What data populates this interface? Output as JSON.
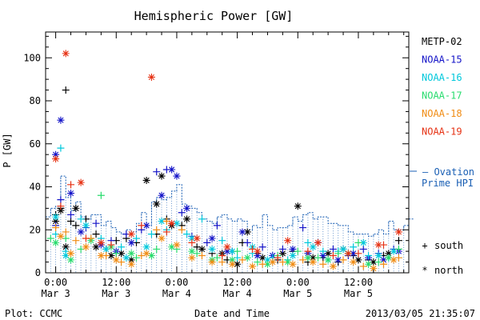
{
  "chart_data": {
    "type": "scatter",
    "title": "Hemispheric Power [GW]",
    "xlabel": "Date and Time",
    "ylabel": "P [GW]",
    "ylim": [
      0,
      112
    ],
    "xlim_hours": [
      -2,
      70
    ],
    "yticks": [
      0,
      20,
      40,
      60,
      80,
      100
    ],
    "xticks": [
      {
        "hour": 0,
        "time": "0:00",
        "date": "Mar 3"
      },
      {
        "hour": 12,
        "time": "12:00",
        "date": "Mar 3"
      },
      {
        "hour": 24,
        "time": "0:00",
        "date": "Mar 4"
      },
      {
        "hour": 36,
        "time": "12:00",
        "date": "Mar 4"
      },
      {
        "hour": 48,
        "time": "0:00",
        "date": "Mar 5"
      },
      {
        "hour": 60,
        "time": "12:00",
        "date": "Mar 5"
      }
    ],
    "footer_left": "Plot: CCMC",
    "footer_right": "2013/03/05 21:35:07",
    "marker_key": {
      "south_symbol": "+",
      "south": "south",
      "north_symbol": "*",
      "north": "north"
    },
    "ovation_legend": {
      "line1": "— Ovation",
      "line2": "Prime HPI",
      "color": "#1a5fb4"
    },
    "series": [
      {
        "name": "METP-02",
        "color": "#000000",
        "south": [
          [
            0,
            27
          ],
          [
            1,
            30
          ],
          [
            2,
            85
          ],
          [
            3,
            24
          ],
          [
            4,
            22
          ],
          [
            6,
            25
          ],
          [
            8,
            18
          ],
          [
            10,
            11
          ],
          [
            12,
            15
          ],
          [
            14,
            16
          ],
          [
            16,
            14
          ],
          [
            20,
            18
          ],
          [
            22,
            25
          ],
          [
            25,
            22
          ],
          [
            28,
            12
          ],
          [
            31,
            9
          ],
          [
            34,
            6
          ],
          [
            37,
            14
          ],
          [
            40,
            9
          ],
          [
            44,
            6
          ],
          [
            47,
            10
          ],
          [
            50,
            5
          ],
          [
            53,
            7
          ],
          [
            56,
            5
          ],
          [
            59,
            8
          ],
          [
            62,
            6
          ],
          [
            65,
            8
          ],
          [
            68,
            15
          ]
        ],
        "north": [
          [
            0,
            24
          ],
          [
            1,
            29
          ],
          [
            2,
            12
          ],
          [
            4,
            30
          ],
          [
            8,
            12
          ],
          [
            11,
            8
          ],
          [
            13,
            9
          ],
          [
            15,
            6
          ],
          [
            18,
            43
          ],
          [
            20,
            32
          ],
          [
            21,
            45
          ],
          [
            23,
            22
          ],
          [
            26,
            25
          ],
          [
            29,
            11
          ],
          [
            33,
            9
          ],
          [
            36,
            4
          ],
          [
            38,
            19
          ],
          [
            41,
            7
          ],
          [
            45,
            9
          ],
          [
            48,
            31
          ],
          [
            51,
            7
          ],
          [
            54,
            9
          ],
          [
            57,
            11
          ],
          [
            60,
            6
          ],
          [
            63,
            5
          ],
          [
            66,
            9
          ]
        ]
      },
      {
        "name": "NOAA-15",
        "color": "#1414c8",
        "south": [
          [
            0,
            22
          ],
          [
            1,
            34
          ],
          [
            3,
            27
          ],
          [
            6,
            21
          ],
          [
            8,
            23
          ],
          [
            11,
            15
          ],
          [
            14,
            18
          ],
          [
            17,
            20
          ],
          [
            20,
            47
          ],
          [
            22,
            48
          ],
          [
            25,
            28
          ],
          [
            27,
            17
          ],
          [
            30,
            14
          ],
          [
            32,
            22
          ],
          [
            35,
            10
          ],
          [
            38,
            14
          ],
          [
            41,
            12
          ],
          [
            45,
            11
          ],
          [
            49,
            21
          ],
          [
            52,
            14
          ],
          [
            55,
            11
          ],
          [
            58,
            8
          ],
          [
            61,
            11
          ],
          [
            64,
            9
          ],
          [
            67,
            11
          ]
        ],
        "north": [
          [
            0,
            55
          ],
          [
            1,
            71
          ],
          [
            3,
            37
          ],
          [
            5,
            19
          ],
          [
            9,
            13
          ],
          [
            12,
            10
          ],
          [
            15,
            14
          ],
          [
            18,
            22
          ],
          [
            21,
            36
          ],
          [
            23,
            48
          ],
          [
            24,
            45
          ],
          [
            26,
            30
          ],
          [
            31,
            16
          ],
          [
            34,
            10
          ],
          [
            37,
            19
          ],
          [
            40,
            8
          ],
          [
            43,
            8
          ],
          [
            47,
            11
          ],
          [
            50,
            9
          ],
          [
            53,
            8
          ],
          [
            56,
            6
          ],
          [
            59,
            9
          ],
          [
            62,
            7
          ],
          [
            65,
            6
          ],
          [
            68,
            10
          ]
        ]
      },
      {
        "name": "NOAA-16",
        "color": "#00c8dc",
        "south": [
          [
            0,
            18
          ],
          [
            1,
            58
          ],
          [
            2,
            10
          ],
          [
            5,
            25
          ],
          [
            9,
            16
          ],
          [
            13,
            12
          ],
          [
            16,
            16
          ],
          [
            19,
            18
          ],
          [
            22,
            20
          ],
          [
            26,
            18
          ],
          [
            29,
            25
          ],
          [
            33,
            15
          ],
          [
            36,
            7
          ],
          [
            39,
            9
          ],
          [
            43,
            7
          ],
          [
            46,
            6
          ],
          [
            50,
            14
          ],
          [
            53,
            10
          ],
          [
            56,
            10
          ],
          [
            59,
            12
          ],
          [
            62,
            8
          ],
          [
            66,
            7
          ]
        ],
        "north": [
          [
            0,
            26
          ],
          [
            2,
            8
          ],
          [
            6,
            22
          ],
          [
            10,
            11
          ],
          [
            14,
            7
          ],
          [
            18,
            12
          ],
          [
            21,
            24
          ],
          [
            24,
            23
          ],
          [
            27,
            16
          ],
          [
            31,
            11
          ],
          [
            35,
            10
          ],
          [
            39,
            12
          ],
          [
            42,
            6
          ],
          [
            47,
            8
          ],
          [
            51,
            12
          ],
          [
            54,
            6
          ],
          [
            57,
            11
          ],
          [
            61,
            14
          ],
          [
            64,
            8
          ],
          [
            67,
            10
          ]
        ]
      },
      {
        "name": "NOAA-17",
        "color": "#28dc6e",
        "south": [
          [
            -1,
            16
          ],
          [
            2,
            16
          ],
          [
            5,
            11
          ],
          [
            9,
            36
          ],
          [
            12,
            9
          ],
          [
            16,
            7
          ],
          [
            20,
            11
          ],
          [
            24,
            11
          ],
          [
            28,
            9
          ],
          [
            32,
            7
          ],
          [
            36,
            10
          ],
          [
            40,
            5
          ],
          [
            44,
            8
          ],
          [
            48,
            10
          ],
          [
            52,
            7
          ],
          [
            56,
            9
          ],
          [
            60,
            14
          ],
          [
            64,
            5
          ],
          [
            68,
            11
          ]
        ],
        "north": [
          [
            0,
            14
          ],
          [
            3,
            6
          ],
          [
            7,
            15
          ],
          [
            11,
            12
          ],
          [
            15,
            9
          ],
          [
            19,
            8
          ],
          [
            23,
            12
          ],
          [
            27,
            10
          ],
          [
            31,
            6
          ],
          [
            35,
            6
          ],
          [
            38,
            7
          ],
          [
            42,
            4
          ],
          [
            46,
            5
          ],
          [
            50,
            7
          ],
          [
            54,
            6
          ],
          [
            58,
            9
          ],
          [
            62,
            4
          ],
          [
            66,
            7
          ]
        ]
      },
      {
        "name": "NOAA-18",
        "color": "#f08c14",
        "south": [
          [
            0,
            21
          ],
          [
            2,
            19
          ],
          [
            4,
            15
          ],
          [
            7,
            16
          ],
          [
            10,
            8
          ],
          [
            13,
            5
          ],
          [
            17,
            8
          ],
          [
            20,
            20
          ],
          [
            22,
            24
          ],
          [
            25,
            20
          ],
          [
            29,
            8
          ],
          [
            33,
            5
          ],
          [
            37,
            6
          ],
          [
            41,
            4
          ],
          [
            45,
            5
          ],
          [
            49,
            6
          ],
          [
            53,
            4
          ],
          [
            57,
            6
          ],
          [
            61,
            3
          ],
          [
            65,
            4
          ],
          [
            68,
            7
          ]
        ],
        "north": [
          [
            1,
            17
          ],
          [
            3,
            9
          ],
          [
            6,
            12
          ],
          [
            9,
            8
          ],
          [
            12,
            6
          ],
          [
            15,
            4
          ],
          [
            18,
            9
          ],
          [
            21,
            16
          ],
          [
            24,
            13
          ],
          [
            27,
            7
          ],
          [
            31,
            5
          ],
          [
            35,
            4
          ],
          [
            39,
            3
          ],
          [
            43,
            5
          ],
          [
            47,
            4
          ],
          [
            51,
            5
          ],
          [
            55,
            3
          ],
          [
            59,
            5
          ],
          [
            63,
            2
          ],
          [
            67,
            6
          ]
        ]
      },
      {
        "name": "NOAA-19",
        "color": "#e63214",
        "south": [
          [
            1,
            31
          ],
          [
            3,
            41
          ],
          [
            6,
            16
          ],
          [
            11,
            13
          ],
          [
            17,
            22
          ],
          [
            22,
            19
          ],
          [
            27,
            14
          ],
          [
            33,
            8
          ],
          [
            39,
            11
          ],
          [
            44,
            7
          ],
          [
            50,
            10
          ],
          [
            55,
            8
          ],
          [
            60,
            9
          ],
          [
            65,
            13
          ]
        ],
        "north": [
          [
            0,
            53
          ],
          [
            2,
            102
          ],
          [
            5,
            42
          ],
          [
            9,
            14
          ],
          [
            15,
            18
          ],
          [
            19,
            91
          ],
          [
            23,
            23
          ],
          [
            28,
            16
          ],
          [
            34,
            12
          ],
          [
            40,
            10
          ],
          [
            46,
            15
          ],
          [
            52,
            14
          ],
          [
            58,
            9
          ],
          [
            64,
            13
          ],
          [
            68,
            19
          ]
        ]
      }
    ],
    "ovation": {
      "color": "#1a5fb4",
      "x": [
        -2,
        -1,
        0,
        1,
        2,
        3,
        4,
        5,
        6,
        7,
        8,
        9,
        10,
        11,
        12,
        13,
        14,
        15,
        16,
        17,
        18,
        19,
        20,
        21,
        22,
        23,
        24,
        25,
        26,
        27,
        28,
        29,
        30,
        31,
        32,
        33,
        34,
        35,
        36,
        37,
        38,
        39,
        40,
        41,
        42,
        43,
        44,
        45,
        46,
        47,
        48,
        49,
        50,
        51,
        52,
        53,
        54,
        55,
        56,
        57,
        58,
        59,
        60,
        61,
        62,
        63,
        64,
        65,
        66,
        67,
        68,
        69,
        70
      ],
      "y": [
        26,
        30,
        31,
        45,
        35,
        29,
        33,
        26,
        25,
        27,
        27,
        22,
        24,
        21,
        19,
        18,
        20,
        19,
        23,
        28,
        22,
        33,
        35,
        34,
        35,
        38,
        41,
        32,
        31,
        30,
        28,
        25,
        24,
        23,
        26,
        27,
        25,
        24,
        25,
        24,
        20,
        22,
        21,
        27,
        22,
        20,
        21,
        21,
        22,
        26,
        24,
        27,
        28,
        25,
        26,
        26,
        23,
        23,
        22,
        22,
        19,
        18,
        18,
        18,
        17,
        18,
        20,
        18,
        24,
        20,
        20,
        22,
        25
      ]
    }
  }
}
